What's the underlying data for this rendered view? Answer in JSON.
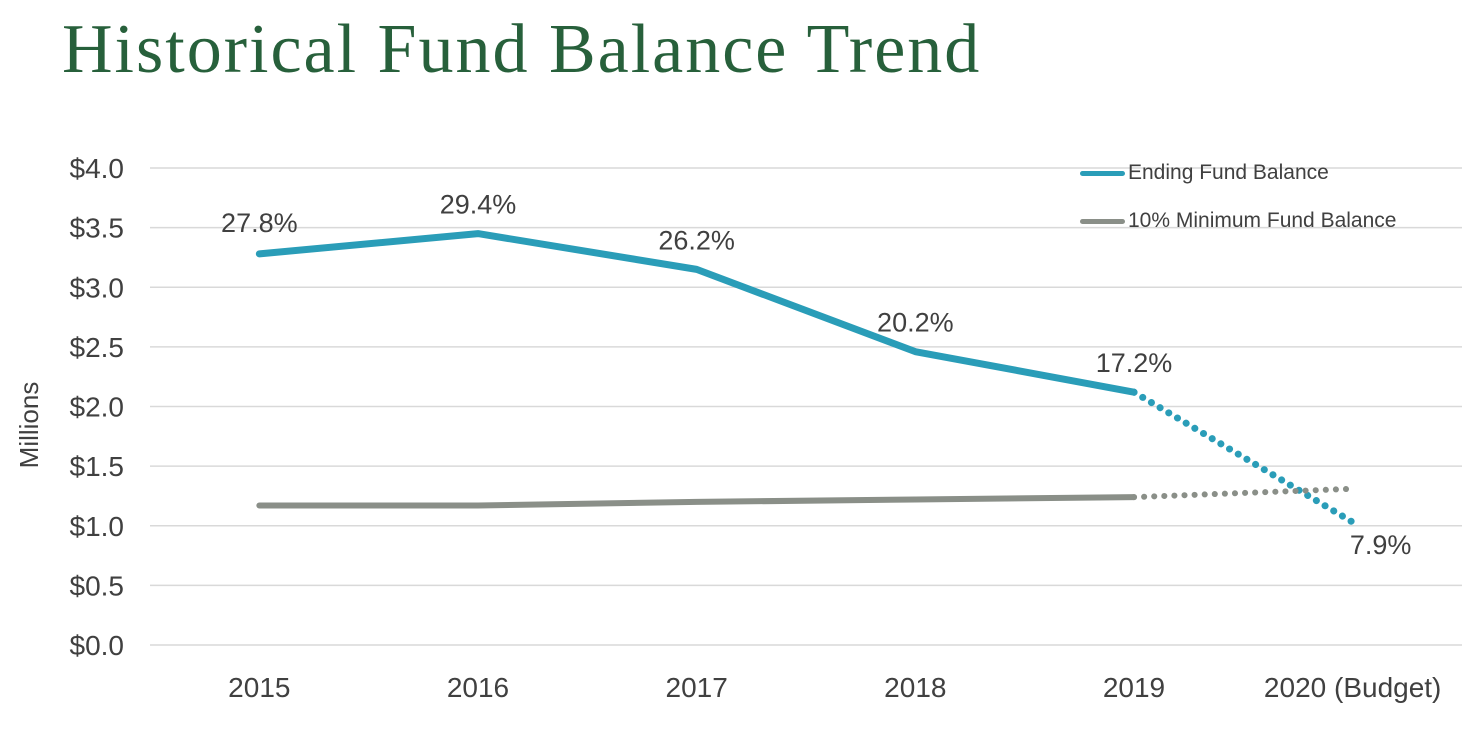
{
  "title": {
    "text": "Historical Fund Balance Trend",
    "color": "#27603B"
  },
  "chart_data": {
    "type": "line",
    "title": "Historical Fund Balance Trend",
    "xlabel": "",
    "ylabel": "Millions",
    "ylim": [
      0,
      4
    ],
    "ytick_step": 0.5,
    "grid": true,
    "legend_position": "top-right",
    "categories": [
      "2015",
      "2016",
      "2017",
      "2018",
      "2019",
      "2020 (Budget)"
    ],
    "y_ticks": [
      {
        "label": "$4.0",
        "value": 4.0
      },
      {
        "label": "$3.5",
        "value": 3.5
      },
      {
        "label": "$3.0",
        "value": 3.0
      },
      {
        "label": "$2.5",
        "value": 2.5
      },
      {
        "label": "$2.0",
        "value": 2.0
      },
      {
        "label": "$1.5",
        "value": 1.5
      },
      {
        "label": "$1.0",
        "value": 1.0
      },
      {
        "label": "$0.5",
        "value": 0.5
      },
      {
        "label": "$0.0",
        "value": 0.0
      }
    ],
    "series": [
      {
        "name": "Ending Fund Balance",
        "color": "#2A9DB8",
        "values": [
          3.28,
          3.45,
          3.15,
          2.46,
          2.12,
          1.03
        ],
        "point_labels": [
          "27.8%",
          "29.4%",
          "26.2%",
          "20.2%",
          "17.2%",
          "7.9%"
        ],
        "dotted_from": 4
      },
      {
        "name": "10% Minimum Fund Balance",
        "color": "#8A8F88",
        "values": [
          1.17,
          1.17,
          1.2,
          1.22,
          1.24,
          1.31
        ],
        "point_labels": [],
        "dotted_from": 4
      }
    ],
    "label_color": "#3F3F3F",
    "grid_color": "#D9D9D9"
  }
}
